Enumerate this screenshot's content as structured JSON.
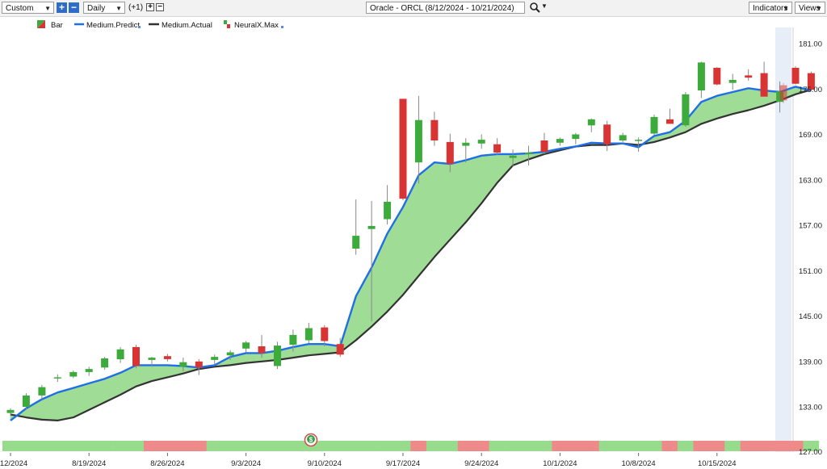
{
  "toolbar": {
    "period_select": "Custom",
    "interval_select": "Daily",
    "plus_label": "+",
    "minus_label": "−",
    "offset_label": "(+1)",
    "symbol_title": "Oracle - ORCL (8/12/2024 - 10/21/2024)",
    "indicators_label": "Indicators",
    "views_label": "Views",
    "search_icon": "magnifier-icon",
    "dropdown_icon": "chevron-down-icon"
  },
  "legend": [
    {
      "label": "Bar",
      "icon": "bar-icon"
    },
    {
      "label": "Medium.Predict",
      "color": "#1f6fe8",
      "icon": "line-icon"
    },
    {
      "label": "Medium.Actual",
      "color": "#333333",
      "icon": "line-icon"
    },
    {
      "label": "NeuralX.Max",
      "icon": "neuralx-icon"
    }
  ],
  "colors": {
    "up": "#3cab3c",
    "down": "#d93434",
    "predict": "#1f6fe8",
    "actual": "#333333",
    "fill": "#9fdc95",
    "strip_green": "#97dc8c",
    "strip_red": "#ee8a8a"
  },
  "chart_data": {
    "type": "candlestick",
    "title": "Oracle - ORCL (8/12/2024 - 10/21/2024)",
    "ylim": [
      127,
      183
    ],
    "y_ticks": [
      "133.00",
      "139.00",
      "145.00",
      "151.00",
      "157.00",
      "163.00",
      "169.00",
      "175.00",
      "181.00"
    ],
    "x_tick_labels": [
      {
        "label": "12/2024",
        "at": 0
      },
      {
        "label": "8/19/2024",
        "at": 5
      },
      {
        "label": "8/26/2024",
        "at": 10
      },
      {
        "label": "9/3/2024",
        "at": 15
      },
      {
        "label": "9/10/2024",
        "at": 20
      },
      {
        "label": "9/17/2024",
        "at": 25
      },
      {
        "label": "9/24/2024",
        "at": 30
      },
      {
        "label": "10/1/2024",
        "at": 35
      },
      {
        "label": "10/8/2024",
        "at": 40
      },
      {
        "label": "10/15/2024",
        "at": 45
      }
    ],
    "candles": [
      {
        "o": 132.2,
        "h": 132.8,
        "l": 131.8,
        "c": 132.6
      },
      {
        "o": 133.0,
        "h": 134.8,
        "l": 132.6,
        "c": 134.5
      },
      {
        "o": 134.5,
        "h": 135.9,
        "l": 134.0,
        "c": 135.6
      },
      {
        "o": 136.9,
        "h": 137.3,
        "l": 136.3,
        "c": 136.9
      },
      {
        "o": 137.0,
        "h": 137.8,
        "l": 136.8,
        "c": 137.6
      },
      {
        "o": 137.6,
        "h": 138.3,
        "l": 137.1,
        "c": 138.0
      },
      {
        "o": 138.2,
        "h": 139.6,
        "l": 137.9,
        "c": 139.4
      },
      {
        "o": 139.3,
        "h": 140.9,
        "l": 138.8,
        "c": 140.6
      },
      {
        "o": 140.9,
        "h": 141.2,
        "l": 138.1,
        "c": 138.4
      },
      {
        "o": 139.2,
        "h": 139.6,
        "l": 138.3,
        "c": 139.5
      },
      {
        "o": 139.7,
        "h": 140.0,
        "l": 139.0,
        "c": 139.3
      },
      {
        "o": 138.3,
        "h": 139.5,
        "l": 137.7,
        "c": 138.9
      },
      {
        "o": 139.0,
        "h": 139.3,
        "l": 137.2,
        "c": 138.2
      },
      {
        "o": 139.2,
        "h": 139.9,
        "l": 138.5,
        "c": 139.6
      },
      {
        "o": 139.8,
        "h": 140.5,
        "l": 139.2,
        "c": 140.2
      },
      {
        "o": 140.7,
        "h": 141.7,
        "l": 140.2,
        "c": 141.5
      },
      {
        "o": 141.0,
        "h": 142.5,
        "l": 139.5,
        "c": 140.1
      },
      {
        "o": 138.4,
        "h": 141.6,
        "l": 138.0,
        "c": 141.1
      },
      {
        "o": 141.2,
        "h": 143.2,
        "l": 140.3,
        "c": 142.5
      },
      {
        "o": 141.8,
        "h": 144.1,
        "l": 141.4,
        "c": 143.4
      },
      {
        "o": 143.5,
        "h": 143.8,
        "l": 141.0,
        "c": 141.7
      },
      {
        "o": 141.3,
        "h": 142.1,
        "l": 139.6,
        "c": 139.9
      },
      {
        "o": 153.9,
        "h": 160.4,
        "l": 153.1,
        "c": 155.6
      },
      {
        "o": 156.5,
        "h": 160.2,
        "l": 144.3,
        "c": 156.9
      },
      {
        "o": 157.8,
        "h": 162.3,
        "l": 157.1,
        "c": 160.1
      },
      {
        "o": 173.7,
        "h": 173.7,
        "l": 160.3,
        "c": 160.5
      },
      {
        "o": 165.3,
        "h": 174.1,
        "l": 162.5,
        "c": 170.9
      },
      {
        "o": 170.9,
        "h": 172.0,
        "l": 167.5,
        "c": 168.2
      },
      {
        "o": 168.0,
        "h": 169.1,
        "l": 164.0,
        "c": 165.1
      },
      {
        "o": 167.5,
        "h": 168.5,
        "l": 165.3,
        "c": 167.9
      },
      {
        "o": 167.8,
        "h": 169.0,
        "l": 167.1,
        "c": 168.3
      },
      {
        "o": 167.7,
        "h": 168.5,
        "l": 166.3,
        "c": 166.6
      },
      {
        "o": 165.9,
        "h": 167.0,
        "l": 164.7,
        "c": 166.2
      },
      {
        "o": 166.4,
        "h": 167.5,
        "l": 164.9,
        "c": 166.6
      },
      {
        "o": 168.2,
        "h": 169.2,
        "l": 166.4,
        "c": 166.7
      },
      {
        "o": 167.9,
        "h": 168.6,
        "l": 167.5,
        "c": 168.4
      },
      {
        "o": 168.4,
        "h": 169.2,
        "l": 167.7,
        "c": 169.0
      },
      {
        "o": 170.2,
        "h": 171.1,
        "l": 169.3,
        "c": 171.0
      },
      {
        "o": 170.3,
        "h": 170.8,
        "l": 166.8,
        "c": 167.7
      },
      {
        "o": 168.2,
        "h": 169.2,
        "l": 168.0,
        "c": 168.9
      },
      {
        "o": 168.3,
        "h": 168.6,
        "l": 166.7,
        "c": 168.3
      },
      {
        "o": 169.1,
        "h": 171.6,
        "l": 168.9,
        "c": 171.3
      },
      {
        "o": 171.0,
        "h": 172.4,
        "l": 170.4,
        "c": 170.4
      },
      {
        "o": 170.2,
        "h": 174.6,
        "l": 170.0,
        "c": 174.3
      },
      {
        "o": 174.8,
        "h": 178.6,
        "l": 173.8,
        "c": 178.5
      },
      {
        "o": 177.8,
        "h": 177.9,
        "l": 175.5,
        "c": 175.6
      },
      {
        "o": 175.8,
        "h": 177.0,
        "l": 174.9,
        "c": 176.2
      },
      {
        "o": 176.8,
        "h": 177.6,
        "l": 176.1,
        "c": 176.5
      },
      {
        "o": 177.1,
        "h": 178.6,
        "l": 174.0,
        "c": 174.0
      },
      {
        "o": 173.3,
        "h": 176.0,
        "l": 171.9,
        "c": 174.7
      },
      {
        "o": 177.8,
        "h": 178.0,
        "l": 175.6,
        "c": 175.7
      },
      {
        "o": 177.1,
        "h": 177.3,
        "l": 174.8,
        "c": 174.9
      }
    ],
    "predict_point": {
      "o": 175.5,
      "h": 175.8,
      "l": 173.1,
      "c": 173.5
    },
    "series": [
      {
        "name": "Medium.Predict",
        "values": [
          131.2,
          132.8,
          134.0,
          134.9,
          135.5,
          136.1,
          136.7,
          137.5,
          138.5,
          138.5,
          138.5,
          138.4,
          138.2,
          138.5,
          139.6,
          140.1,
          140.1,
          140.4,
          140.9,
          141.3,
          141.3,
          141.0,
          147.6,
          151.4,
          155.9,
          159.4,
          163.6,
          165.3,
          165.1,
          165.6,
          166.2,
          166.4,
          166.4,
          166.5,
          166.7,
          167.1,
          167.4,
          167.9,
          167.8,
          167.8,
          167.3,
          168.8,
          169.3,
          170.8,
          173.3,
          174.1,
          174.6,
          175.1,
          174.8,
          174.6,
          175.3,
          174.8
        ]
      },
      {
        "name": "Medium.Actual",
        "values": [
          132.0,
          131.6,
          131.3,
          131.2,
          131.6,
          132.6,
          133.6,
          134.6,
          135.7,
          136.4,
          136.9,
          137.4,
          138.0,
          138.3,
          138.5,
          138.8,
          139.0,
          139.2,
          139.5,
          139.8,
          140.0,
          140.2,
          141.8,
          143.6,
          145.6,
          147.8,
          150.3,
          152.8,
          155.1,
          157.4,
          159.9,
          162.6,
          164.9,
          165.7,
          166.4,
          166.9,
          167.4,
          167.6,
          167.6,
          167.8,
          167.6,
          168.0,
          168.6,
          169.3,
          170.4,
          171.1,
          171.7,
          172.2,
          172.8,
          173.5,
          174.3,
          174.9
        ]
      }
    ],
    "neuralx_strip": [
      "g",
      "g",
      "g",
      "g",
      "g",
      "g",
      "g",
      "g",
      "g",
      "r",
      "r",
      "r",
      "r",
      "g",
      "g",
      "g",
      "g",
      "g",
      "g",
      "g",
      "g",
      "g",
      "g",
      "g",
      "g",
      "g",
      "r",
      "g",
      "g",
      "r",
      "r",
      "g",
      "g",
      "g",
      "g",
      "r",
      "r",
      "r",
      "g",
      "g",
      "g",
      "g",
      "r",
      "g",
      "r",
      "r",
      "g",
      "r",
      "r",
      "r",
      "r",
      "g"
    ]
  }
}
